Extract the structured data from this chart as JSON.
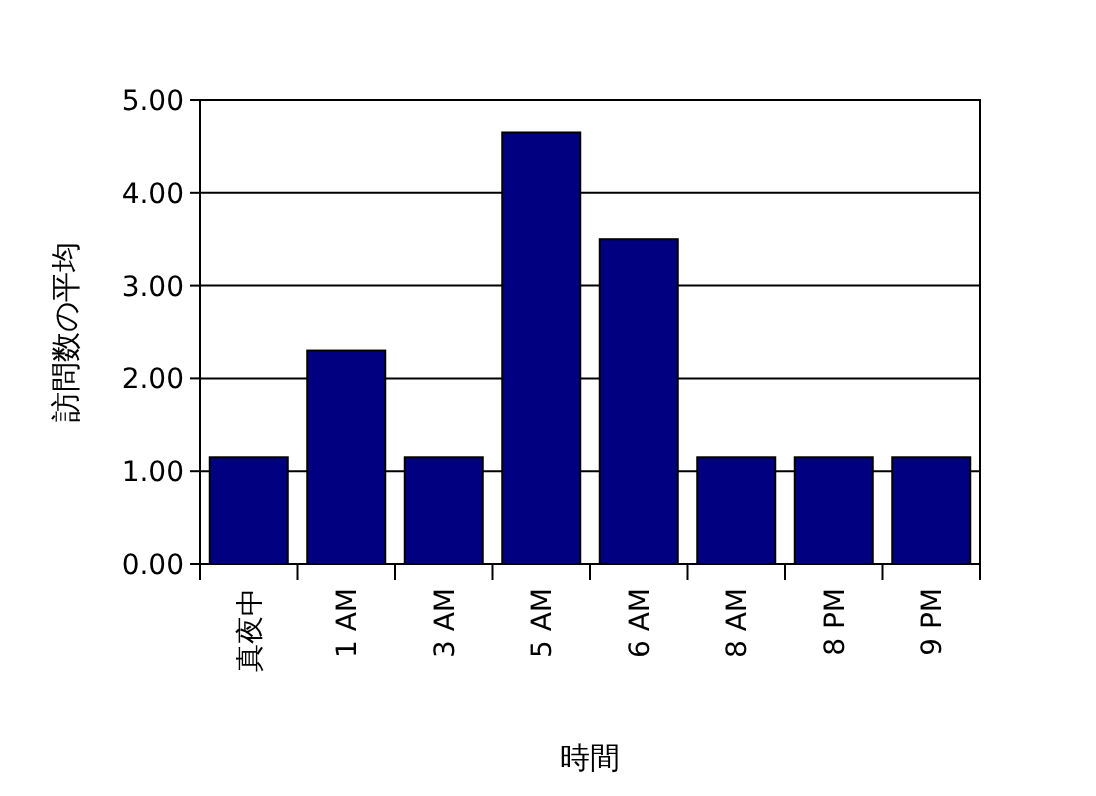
{
  "chart_data": {
    "type": "bar",
    "xlabel": "時間",
    "ylabel": "訪問数の平均",
    "categories": [
      "真夜中",
      "1 AM",
      "3 AM",
      "5 AM",
      "6 AM",
      "8 AM",
      "8 PM",
      "9 PM"
    ],
    "values": [
      1.15,
      2.3,
      1.15,
      4.65,
      3.5,
      1.15,
      1.15,
      1.15
    ],
    "color": "#000080",
    "ylim": [
      0,
      5
    ],
    "yticks": [
      {
        "value": 0,
        "label": "0.00"
      },
      {
        "value": 1,
        "label": "1.00"
      },
      {
        "value": 2,
        "label": "2.00"
      },
      {
        "value": 3,
        "label": "3.00"
      },
      {
        "value": 4,
        "label": "4.00"
      },
      {
        "value": 5,
        "label": "5.00"
      }
    ],
    "grid": "y"
  }
}
